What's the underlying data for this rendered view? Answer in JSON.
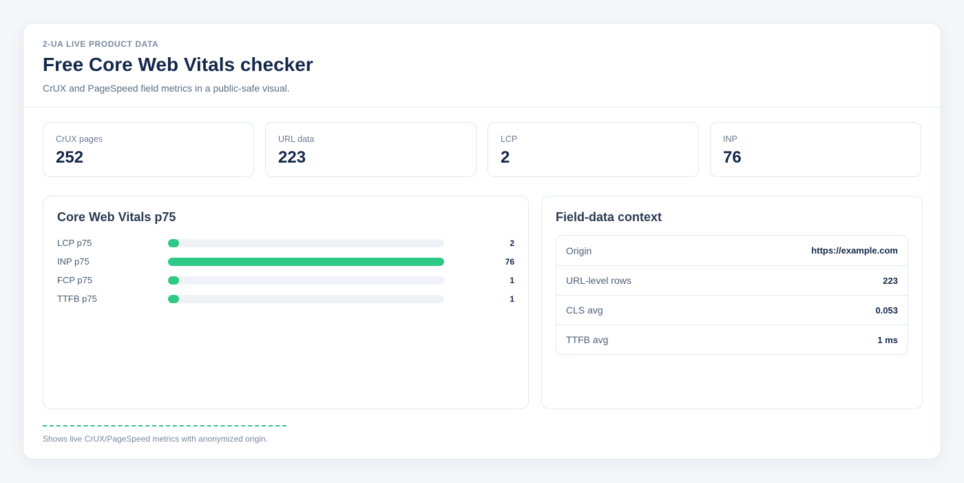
{
  "header": {
    "eyebrow": "2-UA LIVE PRODUCT DATA",
    "title": "Free Core Web Vitals checker",
    "subtitle": "CrUX and PageSpeed field metrics in a public-safe visual."
  },
  "stats": [
    {
      "label": "CrUX pages",
      "value": "252"
    },
    {
      "label": "URL data",
      "value": "223"
    },
    {
      "label": "LCP",
      "value": "2"
    },
    {
      "label": "INP",
      "value": "76"
    }
  ],
  "vitals": {
    "title": "Core Web Vitals p75",
    "bar_color": "#2fc986",
    "track_color": "#eff2f6",
    "rows": [
      {
        "label": "LCP p75",
        "value": "2",
        "fill": 0.04
      },
      {
        "label": "INP p75",
        "value": "76",
        "fill": 1.0
      },
      {
        "label": "FCP p75",
        "value": "1",
        "fill": 0.04
      },
      {
        "label": "TTFB p75",
        "value": "1",
        "fill": 0.04
      }
    ]
  },
  "context": {
    "title": "Field-data context",
    "rows": [
      {
        "key": "Origin",
        "value": "https://example.com"
      },
      {
        "key": "URL-level rows",
        "value": "223"
      },
      {
        "key": "CLS avg",
        "value": "0.053"
      },
      {
        "key": "TTFB avg",
        "value": "1 ms"
      }
    ]
  },
  "footer": {
    "note": "Shows live CrUX/PageSpeed metrics with anonymized origin.",
    "accent_color": "#35c08e"
  }
}
